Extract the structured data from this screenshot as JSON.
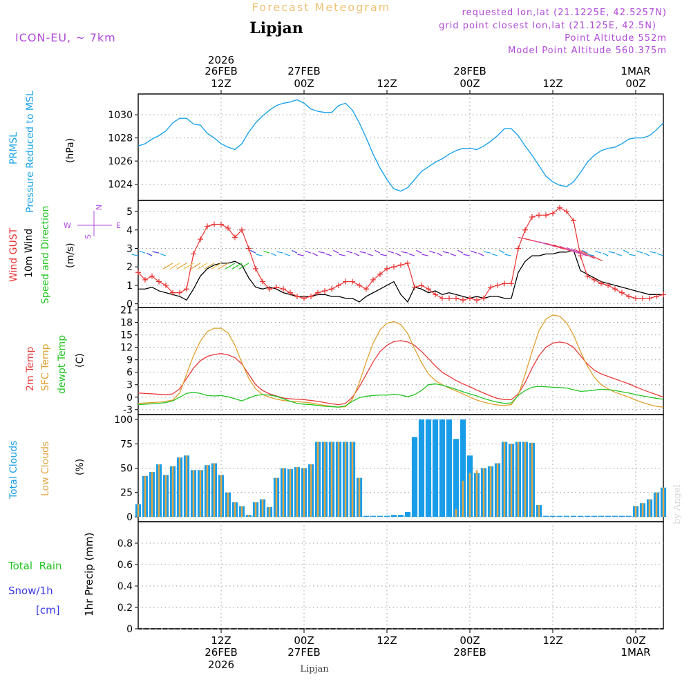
{
  "header": {
    "title": "Forecast Meteogram",
    "location": "Lipjan",
    "model": "ICON-EU, ~ 7km",
    "requested": "requested lon,lat (21.1225E, 42.5257N)",
    "gridpoint": "grid point closest lon,lat (21.125E, 42.5N)",
    "point_alt": "Point Altitude 552m",
    "model_alt": "Model Point Altitude 560.375m",
    "footer_location": "Lipjan",
    "credit": "by Angel"
  },
  "colors": {
    "pressure": "#1aa3e8",
    "gust": "#e83030",
    "wind": "#000000",
    "temp2m": "#e83a3a",
    "sfctemp": "#e0a030",
    "dewpt": "#22c422",
    "totalcloud": "#1a9de8",
    "lowcloud": "#e0a848",
    "rain": "#22c422",
    "snow": "#3a3ae8",
    "model": "#b04ad8",
    "title": "#f0c070"
  },
  "time_axis": {
    "top_labels": [
      {
        "line1": "2026",
        "line2": "26FEB",
        "line3": "12Z",
        "h": 12
      },
      {
        "line1": "",
        "line2": "27FEB",
        "line3": "00Z",
        "h": 24
      },
      {
        "line1": "",
        "line2": "",
        "line3": "12Z",
        "h": 36
      },
      {
        "line1": "",
        "line2": "28FEB",
        "line3": "00Z",
        "h": 48
      },
      {
        "line1": "",
        "line2": "",
        "line3": "12Z",
        "h": 60
      },
      {
        "line1": "",
        "line2": "1MAR",
        "line3": "00Z",
        "h": 72
      }
    ],
    "bottom_labels": [
      {
        "line1": "12Z",
        "line2": "26FEB",
        "line3": "2026",
        "h": 12
      },
      {
        "line1": "00Z",
        "line2": "27FEB",
        "line3": "",
        "h": 24
      },
      {
        "line1": "12Z",
        "line2": "",
        "line3": "",
        "h": 36
      },
      {
        "line1": "00Z",
        "line2": "28FEB",
        "line3": "",
        "h": 48
      },
      {
        "line1": "12Z",
        "line2": "",
        "line3": "",
        "h": 60
      },
      {
        "line1": "00Z",
        "line2": "1MAR",
        "line3": "",
        "h": 72
      }
    ]
  },
  "panel_labels": {
    "pressure": {
      "l1": "PRMSL",
      "l2": "Pressure Reduced to MSL",
      "unit": "(hPa)"
    },
    "wind": {
      "l1": "Wind GUST",
      "l2": "10m Wind",
      "l3": "Speed and Direction",
      "unit": "(m/s)",
      "compass_n": "N",
      "compass_s": "S",
      "compass_w": "W",
      "compass_e": "E"
    },
    "temp": {
      "l1": "2m Temp",
      "l2": "SFC Temp",
      "l3": "dewpt Temp",
      "unit": "(C)"
    },
    "cloud": {
      "l1": "Total Clouds",
      "l2": "Low Clouds",
      "unit": "(%)"
    },
    "precip": {
      "l1": "Total  Rain",
      "l2": "Snow/1h",
      "l3": "[cm]",
      "unit": "1hr Precip (mm)"
    }
  },
  "chart_data": [
    {
      "type": "line",
      "name": "pressure",
      "title": "PRMSL Pressure Reduced to MSL",
      "ylabel": "(hPa)",
      "ylim": [
        1022.6,
        1031.8
      ],
      "yticks": [
        1024,
        1026,
        1028,
        1030
      ],
      "x": [
        0,
        1,
        2,
        3,
        4,
        5,
        6,
        7,
        8,
        9,
        10,
        11,
        12,
        13,
        14,
        15,
        16,
        17,
        18,
        19,
        20,
        21,
        22,
        23,
        24,
        25,
        26,
        27,
        28,
        29,
        30,
        31,
        32,
        33,
        34,
        35,
        36,
        37,
        38,
        39,
        40,
        41,
        42,
        43,
        44,
        45,
        46,
        47,
        48,
        49,
        50,
        51,
        52,
        53,
        54,
        55,
        56,
        57,
        58,
        59,
        60,
        61,
        62,
        63,
        64,
        65,
        66,
        67,
        68,
        69,
        70,
        71,
        72,
        73,
        74,
        75,
        76
      ],
      "series": [
        {
          "name": "PRMSL",
          "values": [
            1027.3,
            1027.5,
            1027.9,
            1028.2,
            1028.6,
            1029.3,
            1029.7,
            1029.7,
            1029.2,
            1029.1,
            1028.4,
            1028.0,
            1027.5,
            1027.2,
            1027.0,
            1027.5,
            1028.5,
            1029.3,
            1029.9,
            1030.4,
            1030.8,
            1031.0,
            1031.1,
            1031.3,
            1031.0,
            1030.5,
            1030.3,
            1030.2,
            1030.2,
            1030.8,
            1031.0,
            1030.4,
            1029.3,
            1028.0,
            1026.6,
            1025.4,
            1024.4,
            1023.6,
            1023.4,
            1023.7,
            1024.4,
            1025.1,
            1025.5,
            1025.9,
            1026.2,
            1026.6,
            1026.9,
            1027.1,
            1027.1,
            1027.0,
            1027.3,
            1027.7,
            1028.2,
            1028.8,
            1028.8,
            1028.2,
            1027.3,
            1026.5,
            1025.6,
            1024.7,
            1024.2,
            1023.9,
            1023.8,
            1024.2,
            1025.0,
            1025.9,
            1026.5,
            1026.9,
            1027.1,
            1027.2,
            1027.5,
            1027.9,
            1028.0,
            1028.0,
            1028.2,
            1028.7,
            1029.3
          ]
        }
      ]
    },
    {
      "type": "line",
      "name": "wind",
      "title": "Wind GUST / 10m Wind Speed and Direction",
      "ylabel": "(m/s)",
      "ylim": [
        -0.2,
        5.6
      ],
      "yticks": [
        0,
        1,
        2,
        3,
        4,
        5
      ],
      "x": [
        0,
        1,
        2,
        3,
        4,
        5,
        6,
        7,
        8,
        9,
        10,
        11,
        12,
        13,
        14,
        15,
        16,
        17,
        18,
        19,
        20,
        21,
        22,
        23,
        24,
        25,
        26,
        27,
        28,
        29,
        30,
        31,
        32,
        33,
        34,
        35,
        36,
        37,
        38,
        39,
        40,
        41,
        42,
        43,
        44,
        45,
        46,
        47,
        48,
        49,
        50,
        51,
        52,
        53,
        54,
        55,
        56,
        57,
        58,
        59,
        60,
        61,
        62,
        63,
        64,
        65,
        66,
        67,
        68,
        69,
        70,
        71,
        72,
        73,
        74,
        75,
        76
      ],
      "series": [
        {
          "name": "Wind GUST",
          "values": [
            1.7,
            1.3,
            1.5,
            1.2,
            1.0,
            0.6,
            0.6,
            0.8,
            2.7,
            3.5,
            4.2,
            4.3,
            4.3,
            4.1,
            3.6,
            4.0,
            3.0,
            1.9,
            1.2,
            0.8,
            0.9,
            0.8,
            0.6,
            0.4,
            0.3,
            0.4,
            0.6,
            0.7,
            0.8,
            1.0,
            1.2,
            1.2,
            1.0,
            0.8,
            1.3,
            1.6,
            1.9,
            2.0,
            2.1,
            2.2,
            0.9,
            1.0,
            0.8,
            0.5,
            0.3,
            0.3,
            0.3,
            0.2,
            0.3,
            0.2,
            0.3,
            0.9,
            1.0,
            1.1,
            1.1,
            3.0,
            4.0,
            4.7,
            4.8,
            4.8,
            4.9,
            5.2,
            5.0,
            4.5,
            2.6,
            1.5,
            1.3,
            1.1,
            1.0,
            0.8,
            0.6,
            0.4,
            0.3,
            0.3,
            0.3,
            0.4,
            0.5
          ]
        },
        {
          "name": "10m Wind",
          "values": [
            0.8,
            0.8,
            0.9,
            0.7,
            0.6,
            0.5,
            0.4,
            0.2,
            0.8,
            1.5,
            1.9,
            2.1,
            2.2,
            2.2,
            2.3,
            2.1,
            1.4,
            0.9,
            0.8,
            0.9,
            0.8,
            0.6,
            0.5,
            0.4,
            0.4,
            0.4,
            0.5,
            0.5,
            0.4,
            0.4,
            0.3,
            0.3,
            0.1,
            0.4,
            0.6,
            0.8,
            1.0,
            1.2,
            0.5,
            0.1,
            0.9,
            0.8,
            0.6,
            0.7,
            0.5,
            0.6,
            0.5,
            0.4,
            0.3,
            0.4,
            0.3,
            0.4,
            0.4,
            0.3,
            0.3,
            1.7,
            2.3,
            2.6,
            2.6,
            2.7,
            2.7,
            2.8,
            2.8,
            2.9,
            1.8,
            1.6,
            1.4,
            1.2,
            1.1,
            1.0,
            0.9,
            0.8,
            0.7,
            0.6,
            0.5,
            0.5,
            0.5
          ]
        }
      ]
    },
    {
      "type": "line",
      "name": "temperature",
      "title": "2m Temp / SFC Temp / dewpt Temp",
      "ylabel": "(C)",
      "ylim": [
        -4.2,
        21.6
      ],
      "yticks": [
        -3,
        0,
        3,
        6,
        9,
        12,
        15,
        18,
        21
      ],
      "x": [
        0,
        1,
        2,
        3,
        4,
        5,
        6,
        7,
        8,
        9,
        10,
        11,
        12,
        13,
        14,
        15,
        16,
        17,
        18,
        19,
        20,
        21,
        22,
        23,
        24,
        25,
        26,
        27,
        28,
        29,
        30,
        31,
        32,
        33,
        34,
        35,
        36,
        37,
        38,
        39,
        40,
        41,
        42,
        43,
        44,
        45,
        46,
        47,
        48,
        49,
        50,
        51,
        52,
        53,
        54,
        55,
        56,
        57,
        58,
        59,
        60,
        61,
        62,
        63,
        64,
        65,
        66,
        67,
        68,
        69,
        70,
        71,
        72,
        73,
        74,
        75,
        76
      ],
      "series": [
        {
          "name": "2m Temp",
          "values": [
            1.0,
            0.9,
            0.8,
            0.7,
            0.6,
            0.8,
            2.0,
            4.5,
            7.0,
            8.8,
            9.8,
            10.3,
            10.5,
            10.2,
            9.5,
            8.0,
            5.5,
            3.0,
            1.6,
            0.8,
            0.3,
            -0.2,
            -0.4,
            -0.5,
            -0.6,
            -0.8,
            -1.0,
            -1.3,
            -1.6,
            -1.8,
            -1.5,
            0.0,
            2.5,
            5.5,
            8.5,
            11.0,
            12.5,
            13.4,
            13.6,
            13.3,
            12.5,
            11.0,
            9.3,
            7.5,
            6.0,
            5.0,
            4.0,
            3.2,
            2.5,
            1.7,
            1.0,
            0.3,
            -0.3,
            -0.6,
            -0.6,
            0.8,
            3.5,
            7.0,
            10.0,
            12.0,
            13.0,
            13.3,
            13.0,
            12.0,
            10.0,
            8.0,
            6.5,
            5.6,
            5.0,
            4.4,
            3.8,
            3.2,
            2.5,
            1.8,
            1.2,
            0.6,
            0.0
          ]
        },
        {
          "name": "SFC Temp",
          "values": [
            -1.5,
            -1.4,
            -1.3,
            -1.2,
            -1.0,
            -0.7,
            1.0,
            5.5,
            10.0,
            13.5,
            15.8,
            16.6,
            16.6,
            15.5,
            12.5,
            8.3,
            4.5,
            2.0,
            0.6,
            0.0,
            -0.5,
            -0.8,
            -1.0,
            -1.1,
            -1.2,
            -1.4,
            -1.7,
            -2.0,
            -2.2,
            -2.4,
            -2.3,
            -0.5,
            3.5,
            8.5,
            13.0,
            16.2,
            17.8,
            18.2,
            17.5,
            15.3,
            11.7,
            8.3,
            5.6,
            4.0,
            3.0,
            2.2,
            1.5,
            0.8,
            0.0,
            -0.7,
            -1.2,
            -1.6,
            -1.9,
            -2.0,
            -1.8,
            0.5,
            5.5,
            11.0,
            16.0,
            18.8,
            19.8,
            19.5,
            17.9,
            15.0,
            11.0,
            7.5,
            4.8,
            3.0,
            2.0,
            1.2,
            0.6,
            0.0,
            -0.7,
            -1.3,
            -1.8,
            -2.2,
            -2.4
          ]
        },
        {
          "name": "dewpt Temp",
          "values": [
            -1.8,
            -1.7,
            -1.6,
            -1.5,
            -1.3,
            -0.9,
            0.0,
            0.9,
            1.2,
            0.9,
            0.4,
            0.3,
            0.4,
            0.1,
            -0.4,
            -0.9,
            -0.2,
            0.4,
            0.6,
            0.5,
            0.2,
            -0.4,
            -1.0,
            -1.5,
            -1.7,
            -1.8,
            -2.0,
            -2.2,
            -2.3,
            -2.4,
            -2.1,
            -1.0,
            -0.1,
            0.2,
            0.4,
            0.5,
            0.5,
            0.7,
            0.5,
            0.1,
            0.6,
            1.6,
            3.0,
            3.2,
            2.9,
            2.4,
            1.9,
            1.3,
            0.8,
            0.3,
            -0.3,
            -0.8,
            -1.2,
            -1.5,
            -1.4,
            0.4,
            1.6,
            2.4,
            2.6,
            2.5,
            2.4,
            2.3,
            2.2,
            1.8,
            1.4,
            1.5,
            1.7,
            1.9,
            1.8,
            1.6,
            1.3,
            1.0,
            0.6,
            0.3,
            0.0,
            -0.3,
            -0.5
          ]
        }
      ]
    },
    {
      "type": "bar",
      "name": "clouds",
      "title": "Total Clouds / Low Clouds",
      "ylabel": "(%)",
      "ylim": [
        -5,
        105
      ],
      "yticks": [
        0,
        25,
        50,
        75,
        100
      ],
      "x": [
        0,
        1,
        2,
        3,
        4,
        5,
        6,
        7,
        8,
        9,
        10,
        11,
        12,
        13,
        14,
        15,
        16,
        17,
        18,
        19,
        20,
        21,
        22,
        23,
        24,
        25,
        26,
        27,
        28,
        29,
        30,
        31,
        32,
        33,
        34,
        35,
        36,
        37,
        38,
        39,
        40,
        41,
        42,
        43,
        44,
        45,
        46,
        47,
        48,
        49,
        50,
        51,
        52,
        53,
        54,
        55,
        56,
        57,
        58,
        59,
        60,
        61,
        62,
        63,
        64,
        65,
        66,
        67,
        68,
        69,
        70,
        71,
        72,
        73,
        74,
        75,
        76
      ],
      "series": [
        {
          "name": "Total Clouds",
          "values": [
            13,
            42,
            46,
            54,
            43,
            52,
            61,
            63,
            48,
            48,
            53,
            55,
            43,
            25,
            15,
            11,
            2,
            15,
            18,
            10,
            40,
            50,
            49,
            51,
            50,
            54,
            77,
            77,
            77,
            77,
            77,
            77,
            40,
            0,
            0,
            0,
            0,
            2,
            2,
            5,
            82,
            100,
            100,
            100,
            100,
            100,
            80,
            100,
            63,
            45,
            50,
            52,
            55,
            77,
            75,
            77,
            77,
            76,
            12,
            0,
            0,
            0,
            0,
            0,
            0,
            0,
            0,
            0,
            0,
            0,
            0,
            0,
            11,
            14,
            18,
            25,
            30
          ]
        },
        {
          "name": "Low Clouds",
          "values": [
            13,
            42,
            46,
            54,
            43,
            52,
            61,
            63,
            48,
            48,
            53,
            55,
            43,
            25,
            15,
            11,
            2,
            15,
            18,
            10,
            40,
            50,
            49,
            51,
            50,
            54,
            77,
            77,
            77,
            77,
            77,
            77,
            40,
            0,
            0,
            0,
            0,
            0,
            0,
            0,
            0,
            0,
            0,
            0,
            0,
            0,
            8,
            37,
            45,
            48,
            50,
            52,
            55,
            77,
            75,
            77,
            77,
            76,
            12,
            0,
            0,
            0,
            0,
            0,
            0,
            0,
            0,
            0,
            0,
            0,
            0,
            0,
            11,
            14,
            18,
            25,
            30
          ]
        }
      ]
    },
    {
      "type": "bar",
      "name": "precip",
      "title": "1hr Precip (mm)",
      "ylabel": "1hr Precip (mm)",
      "ylim": [
        0,
        1.0
      ],
      "yticks": [
        0,
        0.2,
        0.4,
        0.6,
        0.8
      ],
      "series": [
        {
          "name": "Total Rain",
          "values": []
        },
        {
          "name": "Snow/1h",
          "values": []
        }
      ]
    }
  ]
}
